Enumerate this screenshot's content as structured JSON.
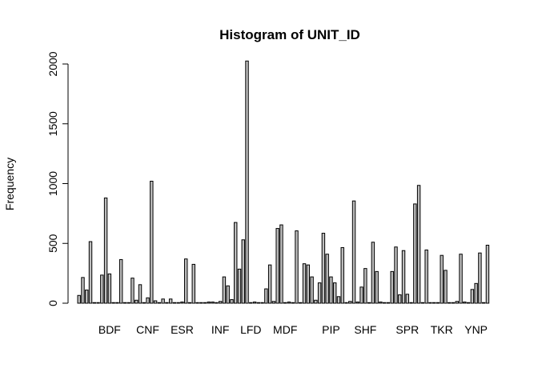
{
  "chart_data": {
    "type": "bar",
    "title": "Histogram of UNIT_ID",
    "xlabel": "",
    "ylabel": "Frequency",
    "ylim": [
      0,
      2100
    ],
    "yticks": [
      0,
      500,
      1000,
      1500,
      2000
    ],
    "tick_labels": [
      {
        "label": "BDF",
        "bar_index": 8
      },
      {
        "label": "CNF",
        "bar_index": 18
      },
      {
        "label": "ESR",
        "bar_index": 27
      },
      {
        "label": "INF",
        "bar_index": 37
      },
      {
        "label": "LFD",
        "bar_index": 45
      },
      {
        "label": "MDF",
        "bar_index": 54
      },
      {
        "label": "PIP",
        "bar_index": 66
      },
      {
        "label": "SHF",
        "bar_index": 75
      },
      {
        "label": "SPR",
        "bar_index": 86
      },
      {
        "label": "TKR",
        "bar_index": 95
      },
      {
        "label": "YNP",
        "bar_index": 104
      }
    ],
    "values": [
      65,
      215,
      110,
      515,
      5,
      5,
      235,
      880,
      245,
      5,
      5,
      365,
      5,
      5,
      210,
      25,
      155,
      5,
      45,
      1020,
      20,
      5,
      35,
      5,
      35,
      5,
      5,
      10,
      370,
      5,
      325,
      5,
      5,
      5,
      10,
      10,
      5,
      15,
      220,
      145,
      30,
      675,
      285,
      530,
      2025,
      5,
      10,
      5,
      5,
      120,
      320,
      15,
      625,
      655,
      5,
      10,
      5,
      605,
      5,
      330,
      320,
      220,
      25,
      170,
      585,
      410,
      220,
      170,
      55,
      465,
      5,
      15,
      855,
      10,
      135,
      290,
      5,
      510,
      265,
      10,
      5,
      5,
      265,
      470,
      70,
      440,
      75,
      5,
      830,
      985,
      5,
      445,
      5,
      5,
      5,
      400,
      275,
      5,
      5,
      15,
      410,
      10,
      5,
      115,
      165,
      420,
      5,
      485
    ]
  }
}
